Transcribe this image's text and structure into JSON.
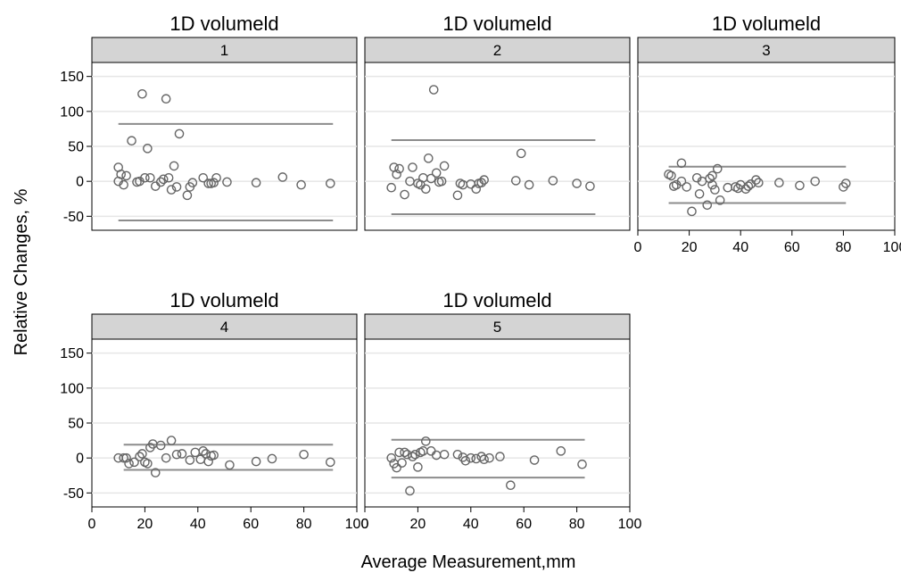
{
  "chart_data": {
    "type": "scatter",
    "xlabel": "Average Measurement,mm",
    "ylabel": "Relative Changes, %",
    "xlim": [
      0,
      100
    ],
    "ylim": [
      -70,
      170
    ],
    "xticks": [
      0,
      20,
      40,
      60,
      80,
      100
    ],
    "yticks": [
      -50,
      0,
      50,
      100,
      150
    ],
    "grid": "horizontal",
    "panels": [
      {
        "title": "1D volumeld",
        "strip": "1",
        "limits": {
          "upper": 82,
          "lower": -56,
          "x_range": [
            10,
            91
          ]
        },
        "points": [
          [
            10,
            20
          ],
          [
            11,
            10
          ],
          [
            12,
            -5
          ],
          [
            10,
            0
          ],
          [
            13,
            8
          ],
          [
            15,
            58
          ],
          [
            17,
            -1
          ],
          [
            18,
            0
          ],
          [
            19,
            125
          ],
          [
            20,
            5
          ],
          [
            21,
            47
          ],
          [
            22,
            5
          ],
          [
            24,
            -7
          ],
          [
            26,
            -1
          ],
          [
            27,
            3
          ],
          [
            28,
            118
          ],
          [
            29,
            5
          ],
          [
            30,
            -12
          ],
          [
            31,
            22
          ],
          [
            32,
            -8
          ],
          [
            33,
            68
          ],
          [
            36,
            -20
          ],
          [
            37,
            -8
          ],
          [
            38,
            -2
          ],
          [
            42,
            5
          ],
          [
            44,
            -3
          ],
          [
            45,
            -3
          ],
          [
            46,
            -2
          ],
          [
            47,
            5
          ],
          [
            51,
            -1
          ],
          [
            62,
            -2
          ],
          [
            72,
            6
          ],
          [
            79,
            -5
          ],
          [
            90,
            -3
          ]
        ]
      },
      {
        "title": "1D volumeld",
        "strip": "2",
        "limits": {
          "upper": 59,
          "lower": -47,
          "x_range": [
            10,
            87
          ]
        },
        "points": [
          [
            10,
            -9
          ],
          [
            11,
            20
          ],
          [
            12,
            10
          ],
          [
            13,
            18
          ],
          [
            15,
            -19
          ],
          [
            17,
            0
          ],
          [
            18,
            20
          ],
          [
            20,
            -3
          ],
          [
            21,
            -5
          ],
          [
            22,
            5
          ],
          [
            23,
            -11
          ],
          [
            24,
            33
          ],
          [
            25,
            4
          ],
          [
            26,
            131
          ],
          [
            27,
            12
          ],
          [
            28,
            -1
          ],
          [
            29,
            0
          ],
          [
            30,
            22
          ],
          [
            35,
            -20
          ],
          [
            36,
            -3
          ],
          [
            37,
            -5
          ],
          [
            40,
            -4
          ],
          [
            42,
            -11
          ],
          [
            43,
            -3
          ],
          [
            44,
            -2
          ],
          [
            45,
            2
          ],
          [
            57,
            1
          ],
          [
            59,
            40
          ],
          [
            62,
            -5
          ],
          [
            71,
            1
          ],
          [
            80,
            -3
          ],
          [
            85,
            -7
          ]
        ]
      },
      {
        "title": "1D volumeld",
        "strip": "3",
        "limits": {
          "upper": 21,
          "lower": -31,
          "x_range": [
            12,
            81
          ]
        },
        "points": [
          [
            12,
            10
          ],
          [
            13,
            8
          ],
          [
            14,
            -7
          ],
          [
            15,
            -5
          ],
          [
            17,
            0
          ],
          [
            17,
            26
          ],
          [
            19,
            -8
          ],
          [
            21,
            -43
          ],
          [
            23,
            5
          ],
          [
            24,
            -18
          ],
          [
            25,
            0
          ],
          [
            27,
            -34
          ],
          [
            28,
            4
          ],
          [
            29,
            8
          ],
          [
            29,
            -5
          ],
          [
            30,
            -12
          ],
          [
            31,
            18
          ],
          [
            32,
            -27
          ],
          [
            35,
            -9
          ],
          [
            38,
            -8
          ],
          [
            39,
            -10
          ],
          [
            40,
            -5
          ],
          [
            42,
            -11
          ],
          [
            43,
            -7
          ],
          [
            44,
            -4
          ],
          [
            46,
            2
          ],
          [
            47,
            -2
          ],
          [
            55,
            -2
          ],
          [
            63,
            -6
          ],
          [
            69,
            0
          ],
          [
            80,
            -8
          ],
          [
            81,
            -3
          ]
        ]
      },
      {
        "title": "1D volumeld",
        "strip": "4",
        "limits": {
          "upper": 19,
          "lower": -17,
          "x_range": [
            12,
            91
          ]
        },
        "points": [
          [
            10,
            0
          ],
          [
            12,
            0
          ],
          [
            13,
            0
          ],
          [
            14,
            -8
          ],
          [
            16,
            -6
          ],
          [
            18,
            2
          ],
          [
            19,
            6
          ],
          [
            20,
            -6
          ],
          [
            21,
            -8
          ],
          [
            22,
            15
          ],
          [
            23,
            20
          ],
          [
            24,
            -21
          ],
          [
            26,
            18
          ],
          [
            28,
            0
          ],
          [
            30,
            25
          ],
          [
            32,
            5
          ],
          [
            34,
            6
          ],
          [
            37,
            -3
          ],
          [
            39,
            8
          ],
          [
            41,
            -2
          ],
          [
            42,
            10
          ],
          [
            43,
            6
          ],
          [
            44,
            -5
          ],
          [
            45,
            3
          ],
          [
            46,
            4
          ],
          [
            52,
            -10
          ],
          [
            62,
            -5
          ],
          [
            68,
            -1
          ],
          [
            80,
            5
          ],
          [
            90,
            -6
          ]
        ]
      },
      {
        "title": "1D volumeld",
        "strip": "5",
        "limits": {
          "upper": 26,
          "lower": -28,
          "x_range": [
            10,
            83
          ]
        },
        "points": [
          [
            10,
            0
          ],
          [
            11,
            -8
          ],
          [
            12,
            -14
          ],
          [
            13,
            8
          ],
          [
            14,
            -7
          ],
          [
            15,
            8
          ],
          [
            16,
            5
          ],
          [
            17,
            -47
          ],
          [
            18,
            2
          ],
          [
            19,
            5
          ],
          [
            20,
            -13
          ],
          [
            21,
            8
          ],
          [
            22,
            10
          ],
          [
            23,
            24
          ],
          [
            25,
            10
          ],
          [
            27,
            4
          ],
          [
            30,
            5
          ],
          [
            35,
            5
          ],
          [
            37,
            1
          ],
          [
            38,
            -4
          ],
          [
            40,
            0
          ],
          [
            42,
            -1
          ],
          [
            44,
            2
          ],
          [
            45,
            -2
          ],
          [
            47,
            0
          ],
          [
            51,
            2
          ],
          [
            55,
            -39
          ],
          [
            64,
            -3
          ],
          [
            74,
            10
          ],
          [
            82,
            -9
          ]
        ]
      }
    ]
  }
}
